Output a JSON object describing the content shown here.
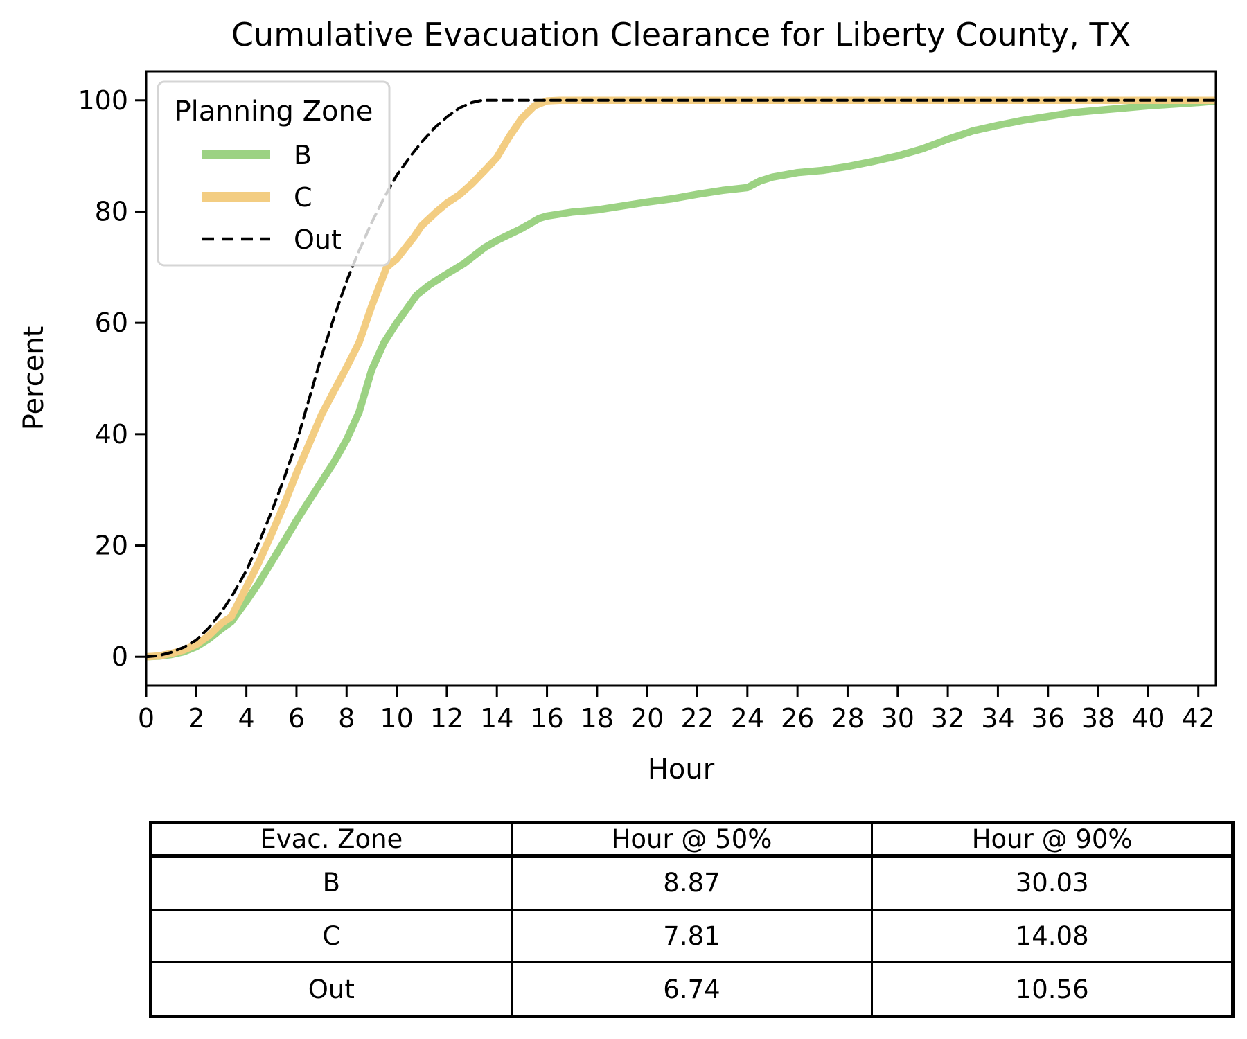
{
  "title": "Cumulative Evacuation Clearance for Liberty County, TX",
  "chart_data": {
    "type": "line",
    "title": "Cumulative Evacuation Clearance for Liberty County, TX",
    "xlabel": "Hour",
    "ylabel": "Percent",
    "xlim": [
      0,
      42.7
    ],
    "ylim": [
      -5.2,
      105.2
    ],
    "xticks": [
      0,
      2,
      4,
      6,
      8,
      10,
      12,
      14,
      16,
      18,
      20,
      22,
      24,
      26,
      28,
      30,
      32,
      34,
      36,
      38,
      40,
      42
    ],
    "yticks": [
      0,
      20,
      40,
      60,
      80,
      100
    ],
    "grid": false,
    "legend": {
      "title": "Planning Zone",
      "position": "upper left",
      "entries": [
        {
          "label": "B",
          "color": "#9cd283",
          "style": "solid"
        },
        {
          "label": "C",
          "color": "#f3cd82",
          "style": "solid"
        },
        {
          "label": "Out",
          "color": "#000000",
          "style": "dashed"
        }
      ]
    },
    "series": [
      {
        "name": "B",
        "color": "#9cd283",
        "style": "solid",
        "width": 10.5,
        "points": [
          [
            0,
            0
          ],
          [
            0.5,
            0.1
          ],
          [
            1,
            0.4
          ],
          [
            1.5,
            0.9
          ],
          [
            2,
            1.8
          ],
          [
            2.5,
            3.2
          ],
          [
            3,
            5
          ],
          [
            3.4,
            6.3
          ],
          [
            4,
            10
          ],
          [
            4.5,
            13.3
          ],
          [
            5,
            17
          ],
          [
            5.5,
            20.7
          ],
          [
            6,
            24.5
          ],
          [
            6.5,
            28
          ],
          [
            7,
            31.5
          ],
          [
            7.5,
            35
          ],
          [
            8,
            39
          ],
          [
            8.5,
            44
          ],
          [
            9,
            51.5
          ],
          [
            9.5,
            56.5
          ],
          [
            10,
            60
          ],
          [
            10.4,
            62.5
          ],
          [
            10.8,
            65
          ],
          [
            11.3,
            66.8
          ],
          [
            12,
            68.8
          ],
          [
            12.7,
            70.7
          ],
          [
            13.5,
            73.5
          ],
          [
            14,
            74.8
          ],
          [
            15,
            77
          ],
          [
            15.7,
            78.8
          ],
          [
            16,
            79.2
          ],
          [
            17,
            79.9
          ],
          [
            18,
            80.3
          ],
          [
            19,
            81
          ],
          [
            20,
            81.7
          ],
          [
            21,
            82.3
          ],
          [
            22,
            83.1
          ],
          [
            23,
            83.8
          ],
          [
            24,
            84.3
          ],
          [
            24.5,
            85.5
          ],
          [
            25,
            86.2
          ],
          [
            26,
            87
          ],
          [
            27,
            87.4
          ],
          [
            28,
            88.1
          ],
          [
            29,
            89
          ],
          [
            30,
            90
          ],
          [
            31,
            91.3
          ],
          [
            32,
            93
          ],
          [
            33,
            94.5
          ],
          [
            34,
            95.5
          ],
          [
            35,
            96.4
          ],
          [
            36,
            97.1
          ],
          [
            37,
            97.8
          ],
          [
            38,
            98.2
          ],
          [
            39,
            98.6
          ],
          [
            40,
            99
          ],
          [
            41,
            99.3
          ],
          [
            42,
            99.6
          ],
          [
            43,
            100
          ]
        ]
      },
      {
        "name": "C",
        "color": "#f3cd82",
        "style": "solid",
        "width": 10.5,
        "points": [
          [
            0,
            0
          ],
          [
            0.5,
            0.15
          ],
          [
            1,
            0.6
          ],
          [
            1.5,
            1.2
          ],
          [
            2,
            2.2
          ],
          [
            2.5,
            3.8
          ],
          [
            3,
            6
          ],
          [
            3.4,
            7.2
          ],
          [
            4,
            12.5
          ],
          [
            4.5,
            17
          ],
          [
            5,
            22
          ],
          [
            5.5,
            27.3
          ],
          [
            6,
            33
          ],
          [
            6.5,
            38.2
          ],
          [
            7,
            43.5
          ],
          [
            7.5,
            47.8
          ],
          [
            8,
            52
          ],
          [
            8.5,
            56.5
          ],
          [
            9,
            63
          ],
          [
            9.6,
            70
          ],
          [
            10,
            71.5
          ],
          [
            10.7,
            75.5
          ],
          [
            11,
            77.5
          ],
          [
            11.6,
            80
          ],
          [
            12,
            81.5
          ],
          [
            12.5,
            83
          ],
          [
            13,
            85
          ],
          [
            13.5,
            87.3
          ],
          [
            14,
            89.7
          ],
          [
            14.5,
            93.5
          ],
          [
            15,
            96.8
          ],
          [
            15.5,
            99
          ],
          [
            16,
            99.9
          ],
          [
            16.5,
            100
          ],
          [
            43,
            100
          ]
        ]
      },
      {
        "name": "Out",
        "color": "#000000",
        "style": "dashed",
        "width": 4,
        "points": [
          [
            0,
            0
          ],
          [
            0.5,
            0.2
          ],
          [
            1,
            0.8
          ],
          [
            1.5,
            1.7
          ],
          [
            2,
            3
          ],
          [
            2.5,
            5.2
          ],
          [
            3,
            8
          ],
          [
            3.5,
            11.5
          ],
          [
            4,
            15.5
          ],
          [
            4.5,
            20.5
          ],
          [
            5,
            26
          ],
          [
            5.5,
            32
          ],
          [
            6,
            38.5
          ],
          [
            6.74,
            50
          ],
          [
            7,
            54
          ],
          [
            7.5,
            61
          ],
          [
            8,
            67.5
          ],
          [
            8.5,
            73
          ],
          [
            9,
            78
          ],
          [
            9.5,
            82.5
          ],
          [
            10,
            86.5
          ],
          [
            10.56,
            90
          ],
          [
            11,
            92.5
          ],
          [
            11.5,
            95
          ],
          [
            12,
            97
          ],
          [
            12.5,
            98.6
          ],
          [
            13,
            99.6
          ],
          [
            13.4,
            100
          ],
          [
            43,
            100
          ]
        ]
      }
    ],
    "annotations": {
      "percentile_markers": [
        {
          "series": "B",
          "hour_at_50pct": 8.87,
          "hour_at_90pct": 30.03
        },
        {
          "series": "C",
          "hour_at_50pct": 7.81,
          "hour_at_90pct": 14.08
        },
        {
          "series": "Out",
          "hour_at_50pct": 6.74,
          "hour_at_90pct": 10.56
        }
      ]
    }
  },
  "table": {
    "headers": [
      "Evac. Zone",
      "Hour @ 50%",
      "Hour @ 90%"
    ],
    "rows": [
      [
        "B",
        "8.87",
        "30.03"
      ],
      [
        "C",
        "7.81",
        "14.08"
      ],
      [
        "Out",
        "6.74",
        "10.56"
      ]
    ]
  }
}
